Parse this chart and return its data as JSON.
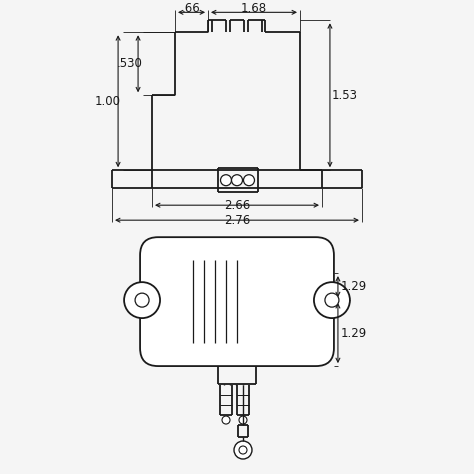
{
  "bg_color": "#f5f5f5",
  "line_color": "#1a1a1a",
  "text_color": "#1a1a1a",
  "fig_size": [
    4.74,
    4.74
  ],
  "dpi": 100,
  "dimensions": {
    "dim_066": ".66",
    "dim_168": "1.68",
    "dim_530": ".530",
    "dim_100": "1.00",
    "dim_153": "1.53",
    "dim_266": "2.66",
    "dim_276": "2.76",
    "dim_129a": "1.29",
    "dim_129b": "1.29"
  }
}
